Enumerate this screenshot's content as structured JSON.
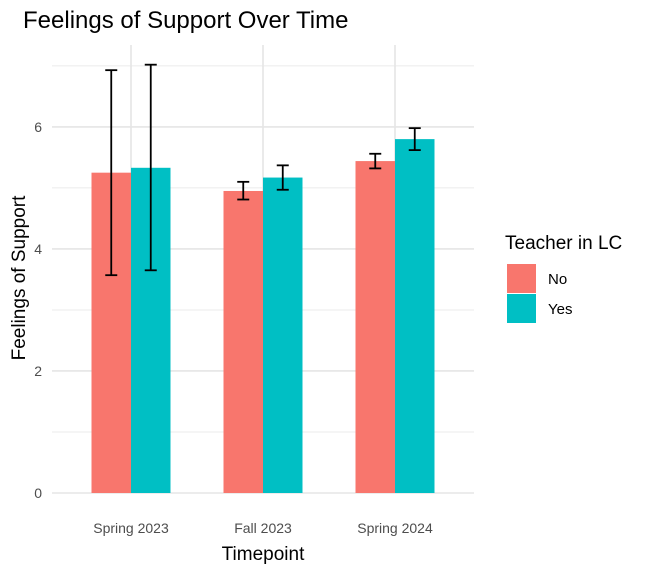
{
  "chart_data": {
    "type": "bar",
    "title": "Feelings of Support Over Time",
    "xlabel": "Timepoint",
    "ylabel": "Feelings of Support",
    "categories": [
      "Spring 2023",
      "Fall 2023",
      "Spring 2024"
    ],
    "y_ticks": [
      "0",
      "2",
      "4",
      "6"
    ],
    "ylim": [
      0,
      7.2
    ],
    "grid": true,
    "error_bars": true,
    "legend": {
      "title": "Teacher in LC",
      "placement": "right"
    },
    "series": [
      {
        "name": "No",
        "color": "#F8766D",
        "values": [
          5.25,
          4.95,
          5.44
        ],
        "error_low": [
          3.57,
          4.81,
          5.32
        ],
        "error_high": [
          6.93,
          5.1,
          5.56
        ]
      },
      {
        "name": "Yes",
        "color": "#00BFC4",
        "values": [
          5.33,
          5.17,
          5.8
        ],
        "error_low": [
          3.65,
          4.97,
          5.62
        ],
        "error_high": [
          7.02,
          5.37,
          5.98
        ]
      }
    ]
  }
}
